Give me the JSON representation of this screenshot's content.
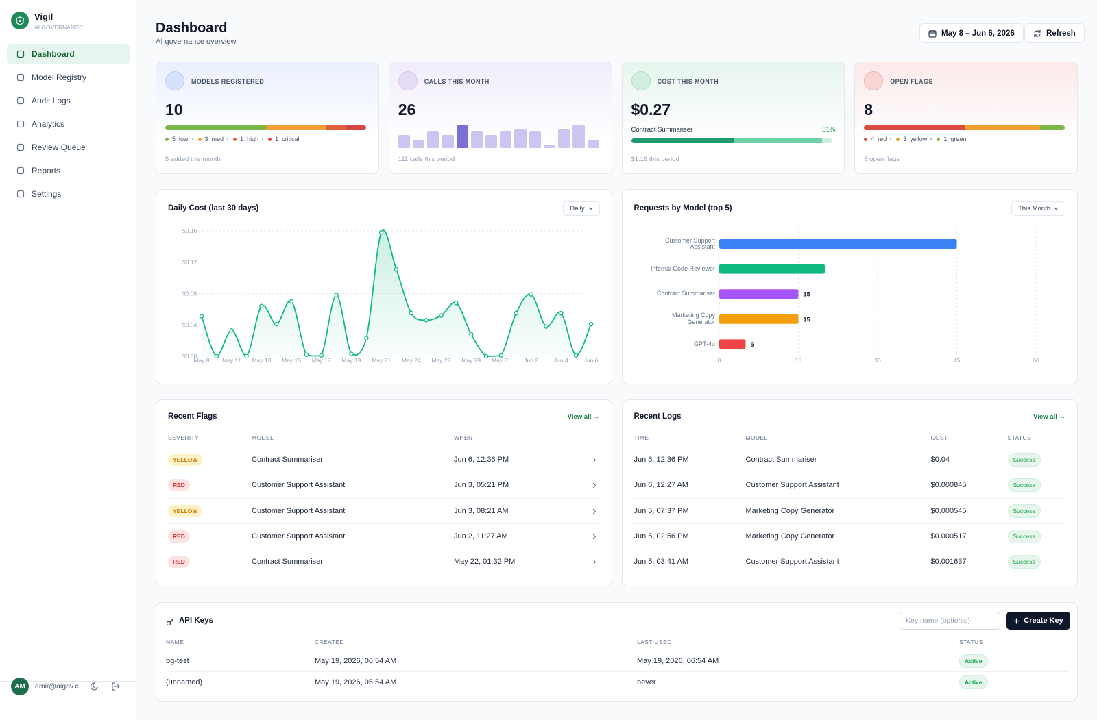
{
  "sidebar": {
    "brand": "Vigil",
    "tagline": "AI GOVERNANCE",
    "nav": [
      "Dashboard",
      "Model Registry",
      "Audit Logs",
      "Analytics",
      "Review Queue",
      "Reports",
      "Settings"
    ],
    "active": 0,
    "user": {
      "initials": "AM",
      "email": "amir@aigov.c..."
    }
  },
  "header": {
    "title": "Dashboard",
    "subtitle": "AI governance overview",
    "date_range": "May 8 – Jun 6, 2026",
    "refresh": "Refresh"
  },
  "stats": [
    {
      "label": "MODELS REGISTERED",
      "value": 10,
      "segments": [
        {
          "value": 5,
          "label": "low",
          "color": "#7ab648"
        },
        {
          "value": 3,
          "label": "med",
          "color": "#f0a033"
        },
        {
          "value": 1,
          "label": "high",
          "color": "#e0603a"
        },
        {
          "value": 1,
          "label": "critical",
          "color": "#d64545"
        }
      ],
      "footer": "5 added this month"
    },
    {
      "label": "CALLS THIS MONTH",
      "value": 26,
      "bars": [
        7,
        4,
        9,
        7,
        12,
        9,
        7,
        9,
        10,
        9,
        2,
        10,
        12,
        4
      ],
      "highlight": 4,
      "footer": "111 calls this period"
    },
    {
      "label": "COST THIS MONTH",
      "value": "$0.27",
      "top_model": "Contract Summariser",
      "share": 51,
      "share_label": "51%",
      "footer": "$1.16 this period"
    },
    {
      "label": "OPEN FLAGS",
      "value": 8,
      "segments": [
        {
          "value": 4,
          "label": "red",
          "color": "#dc4a44"
        },
        {
          "value": 3,
          "label": "yellow",
          "color": "#f0a033"
        },
        {
          "value": 1,
          "label": "green",
          "color": "#7ab648"
        }
      ],
      "footer": "8 open flags"
    }
  ],
  "chart_data": [
    {
      "type": "line",
      "title": "Daily Cost (last 30 days)",
      "control": "Daily",
      "categories": [
        "May 8",
        null,
        "May 11",
        null,
        "May 13",
        null,
        "May 15",
        null,
        "May 17",
        null,
        "May 19",
        null,
        "May 21",
        null,
        "May 24",
        null,
        "May 27",
        null,
        "May 29",
        null,
        "May 31",
        null,
        "Jun 2",
        null,
        "Jun 4",
        null,
        "Jun 6"
      ],
      "values": [
        0.051,
        0,
        0.033,
        0,
        0.064,
        0.041,
        0.07,
        0.002,
        0.001,
        0.078,
        0.003,
        0.023,
        0.158,
        0.111,
        0.055,
        0.046,
        0.052,
        0.068,
        0.028,
        0,
        0.001,
        0.055,
        0.079,
        0.038,
        0.055,
        0.001,
        0.041
      ],
      "color": "#10b981",
      "ylim": [
        0,
        0.16
      ],
      "yticks": [
        {
          "value": 0,
          "label": "$0.00"
        },
        {
          "value": 0.04,
          "label": "$0.04"
        },
        {
          "value": 0.08,
          "label": "$0.08"
        },
        {
          "value": 0.12,
          "label": "$0.12"
        },
        {
          "value": 0.16,
          "label": "$0.16"
        }
      ],
      "grid": true
    },
    {
      "type": "hbar",
      "title": "Requests by Model (top 5)",
      "control": "This Month",
      "categories": [
        "Customer Support Assistant",
        "Internal Code Reviewer",
        "Contract Summariser",
        "Marketing Copy Generator",
        "GPT-4o"
      ],
      "values": [
        45,
        20,
        15,
        15,
        5
      ],
      "value_labels": [
        null,
        null,
        "15",
        "15",
        "5"
      ],
      "colors": [
        "#3b82f6",
        "#10b981",
        "#a855f7",
        "#f59e0b",
        "#ef4444"
      ],
      "xlim": [
        0,
        60
      ],
      "xticks": [
        0,
        15,
        30,
        45,
        60
      ],
      "grid": true
    }
  ],
  "recent_flags": {
    "title": "Recent Flags",
    "link": "View all →",
    "columns": [
      "SEVERITY",
      "MODEL",
      "WHEN"
    ],
    "badge_colors": {
      "YELLOW": {
        "bg": "#fef3c7",
        "fg": "#d97706"
      },
      "RED": {
        "bg": "#fee2e2",
        "fg": "#dc2626"
      }
    },
    "rows": [
      [
        "YELLOW",
        "Contract Summariser",
        "Jun 6, 12:36 PM"
      ],
      [
        "RED",
        "Customer Support Assistant",
        "Jun 3, 05:21 PM"
      ],
      [
        "YELLOW",
        "Customer Support Assistant",
        "Jun 3, 08:21 AM"
      ],
      [
        "RED",
        "Customer Support Assistant",
        "Jun 2, 11:27 AM"
      ],
      [
        "RED",
        "Contract Summariser",
        "May 22, 01:32 PM"
      ]
    ]
  },
  "recent_logs": {
    "title": "Recent Logs",
    "link": "View all →",
    "columns": [
      "TIME",
      "MODEL",
      "COST",
      "STATUS"
    ],
    "rows": [
      [
        "Jun 6, 12:36 PM",
        "Contract Summariser",
        "$0.04",
        "Success"
      ],
      [
        "Jun 6, 12:27 AM",
        "Customer Support Assistant",
        "$0.000845",
        "Success"
      ],
      [
        "Jun 5, 07:37 PM",
        "Marketing Copy Generator",
        "$0.000545",
        "Success"
      ],
      [
        "Jun 5, 02:56 PM",
        "Marketing Copy Generator",
        "$0.000517",
        "Success"
      ],
      [
        "Jun 5, 03:41 AM",
        "Customer Support Assistant",
        "$0.001637",
        "Success"
      ]
    ]
  },
  "api_keys": {
    "title": "API Keys",
    "placeholder": "Key name (optional)",
    "button": "Create Key",
    "columns": [
      "NAME",
      "CREATED",
      "LAST USED",
      "STATUS"
    ],
    "rows": [
      [
        "bg-test",
        "May 19, 2026, 06:54 AM",
        "May 19, 2026, 06:54 AM",
        "Active"
      ],
      [
        "(unnamed)",
        "May 19, 2026, 05:54 AM",
        "never",
        "Active"
      ]
    ]
  }
}
